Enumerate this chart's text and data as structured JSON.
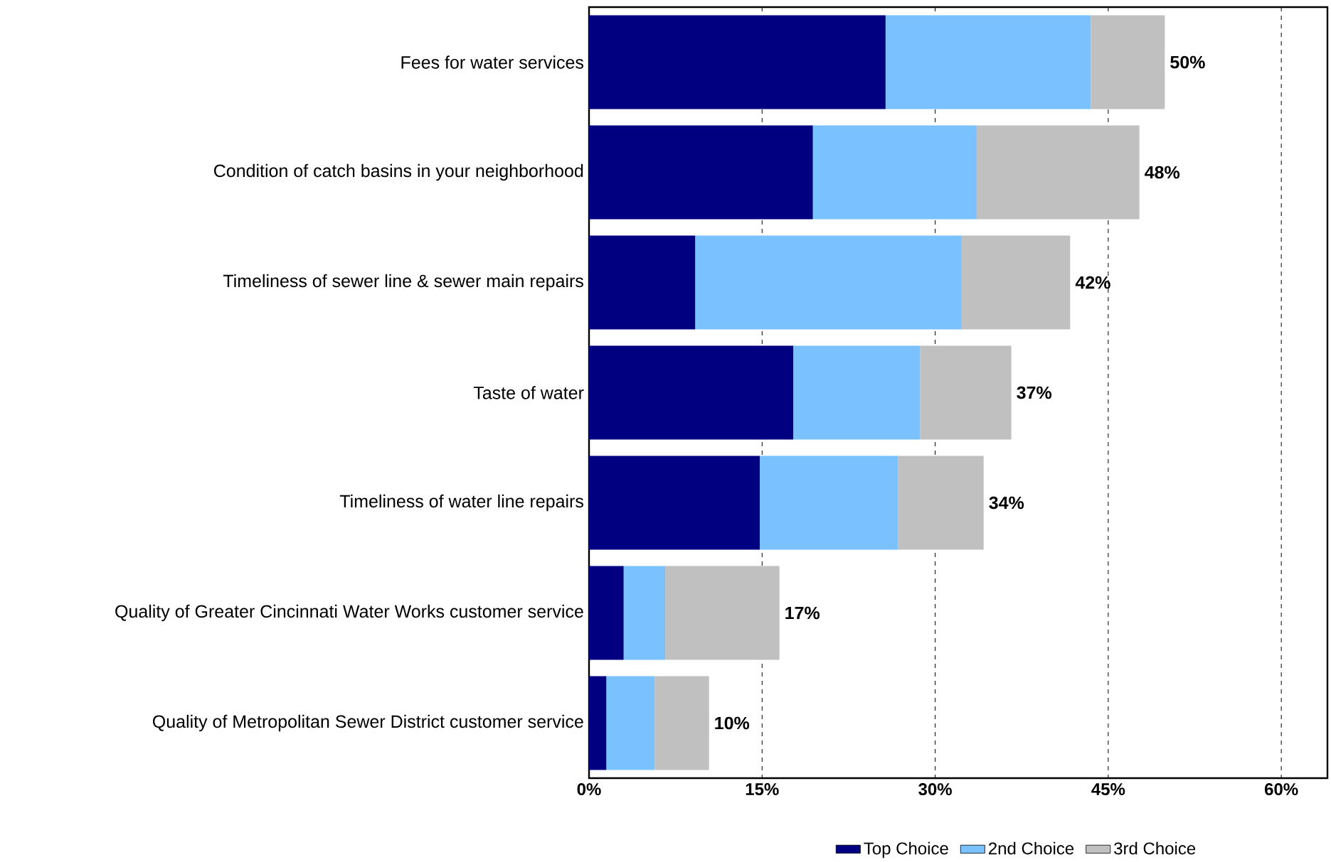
{
  "chart_data": {
    "type": "bar",
    "orientation": "horizontal",
    "stacked": true,
    "categories": [
      "Fees for water services",
      "Condition of catch basins in your neighborhood",
      "Timeliness of sewer line & sewer main repairs",
      "Taste of water",
      "Timeliness of water line repairs",
      "Quality of Greater Cincinnati Water Works customer service",
      "Quality of Metropolitan Sewer District customer service"
    ],
    "series": [
      {
        "name": "Top Choice",
        "color": "#000080",
        "values": [
          25.7,
          19.4,
          9.2,
          17.7,
          14.8,
          3.0,
          1.5
        ]
      },
      {
        "name": "2nd Choice",
        "color": "#79c2ff",
        "values": [
          17.8,
          14.2,
          23.1,
          11.0,
          12.0,
          3.6,
          4.2
        ]
      },
      {
        "name": "3rd Choice",
        "color": "#c0c0c0",
        "values": [
          6.4,
          14.1,
          9.4,
          7.9,
          7.4,
          9.9,
          4.7
        ]
      }
    ],
    "totals": [
      "50%",
      "48%",
      "42%",
      "37%",
      "34%",
      "17%",
      "10%"
    ],
    "xlim": [
      0,
      64
    ],
    "xticks": [
      {
        "value": 0,
        "label": "0%"
      },
      {
        "value": 15,
        "label": "15%"
      },
      {
        "value": 30,
        "label": "30%"
      },
      {
        "value": 45,
        "label": "45%"
      },
      {
        "value": 60,
        "label": "60%"
      }
    ],
    "grid": "x",
    "legend": "bottom"
  }
}
